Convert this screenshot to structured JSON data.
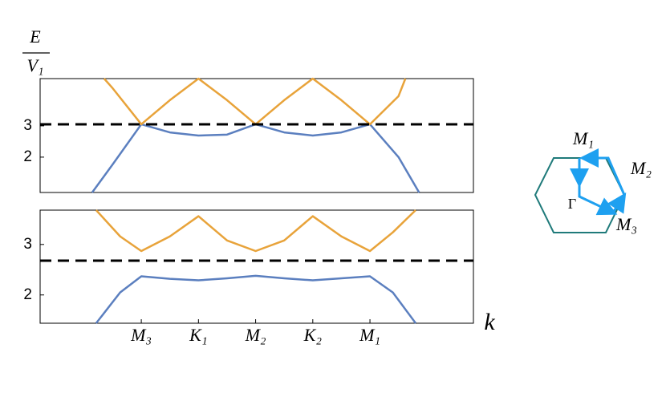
{
  "chart_data": [
    {
      "type": "line",
      "y_label": {
        "numerator": "E",
        "denominator": "V₁"
      },
      "xlim": [
        -1.77,
        5.81
      ],
      "ylim": [
        0.87,
        4.51
      ],
      "yticks": [
        2,
        3
      ],
      "reference_line": 3.05,
      "series": [
        {
          "color": "#5b7fbf",
          "x": [
            -0.86,
            -0.5,
            0,
            0.5,
            1,
            1.5,
            2,
            2.5,
            3,
            3.5,
            4,
            4.5,
            4.86
          ],
          "values": [
            0.87,
            1.77,
            3.05,
            2.79,
            2.69,
            2.72,
            3.05,
            2.79,
            2.69,
            2.79,
            3.05,
            2.0,
            0.87
          ]
        },
        {
          "color": "#e8a33a",
          "x": [
            -0.65,
            -0.5,
            0,
            0.5,
            1,
            1.5,
            2,
            2.5,
            3,
            3.5,
            4,
            4.5,
            4.62
          ],
          "values": [
            4.51,
            4.2,
            3.05,
            3.82,
            4.51,
            3.82,
            3.05,
            3.82,
            4.51,
            3.82,
            3.05,
            3.95,
            4.51
          ]
        }
      ]
    },
    {
      "type": "line",
      "x_label": "k",
      "xlim": [
        -1.77,
        5.81
      ],
      "ylim": [
        1.44,
        3.68
      ],
      "yticks": [
        2,
        3
      ],
      "xticks": [
        {
          "value": 0,
          "label": "M₃"
        },
        {
          "value": 1,
          "label": "K₁"
        },
        {
          "value": 2,
          "label": "M₂"
        },
        {
          "value": 3,
          "label": "K₂"
        },
        {
          "value": 4,
          "label": "M₁"
        }
      ],
      "reference_line": 2.68,
      "series": [
        {
          "color": "#5b7fbf",
          "x": [
            -0.79,
            -0.37,
            0,
            0.5,
            1,
            1.5,
            2,
            2.5,
            3,
            3.5,
            4,
            4.4,
            4.8
          ],
          "values": [
            1.44,
            2.05,
            2.37,
            2.32,
            2.29,
            2.33,
            2.38,
            2.33,
            2.29,
            2.33,
            2.37,
            2.05,
            1.44
          ]
        },
        {
          "color": "#e8a33a",
          "x": [
            -0.79,
            -0.37,
            0,
            0.5,
            1,
            1.5,
            2,
            2.5,
            3,
            3.5,
            4,
            4.4,
            4.8
          ],
          "values": [
            3.68,
            3.16,
            2.87,
            3.16,
            3.56,
            3.08,
            2.87,
            3.08,
            3.56,
            3.16,
            2.87,
            3.24,
            3.68
          ]
        }
      ]
    }
  ],
  "inset": {
    "labels": [
      "M₁",
      "M₂",
      "M₃",
      "Γ"
    ]
  }
}
